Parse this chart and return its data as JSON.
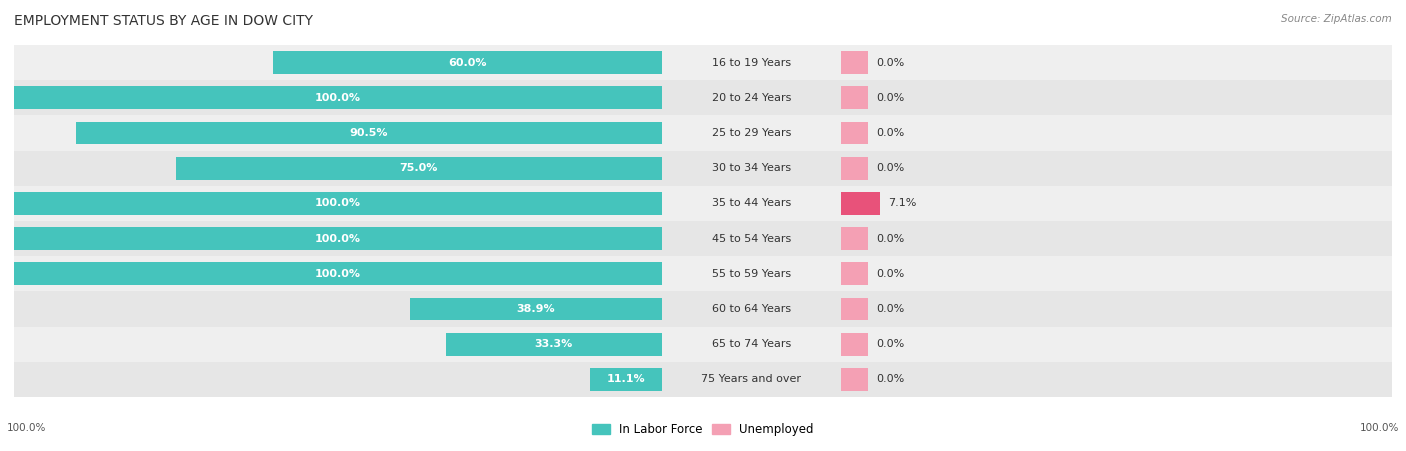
{
  "title": "EMPLOYMENT STATUS BY AGE IN DOW CITY",
  "source": "Source: ZipAtlas.com",
  "categories": [
    "16 to 19 Years",
    "20 to 24 Years",
    "25 to 29 Years",
    "30 to 34 Years",
    "35 to 44 Years",
    "45 to 54 Years",
    "55 to 59 Years",
    "60 to 64 Years",
    "65 to 74 Years",
    "75 Years and over"
  ],
  "labor_force": [
    60.0,
    100.0,
    90.5,
    75.0,
    100.0,
    100.0,
    100.0,
    38.9,
    33.3,
    11.1
  ],
  "unemployed": [
    0.0,
    0.0,
    0.0,
    0.0,
    7.1,
    0.0,
    0.0,
    0.0,
    0.0,
    0.0
  ],
  "labor_force_color": "#45C4BC",
  "unemployed_color": "#F4A0B4",
  "unemployed_highlight_color": "#E8527A",
  "row_bg_colors": [
    "#EFEFEF",
    "#E6E6E6"
  ],
  "title_fontsize": 10,
  "label_fontsize": 8,
  "source_fontsize": 7.5,
  "bar_height": 0.65,
  "lf_max": 100.0,
  "unemp_max": 100.0,
  "unemp_display_scale": 10.0,
  "left_axis_label": "100.0%",
  "right_axis_label": "100.0%"
}
